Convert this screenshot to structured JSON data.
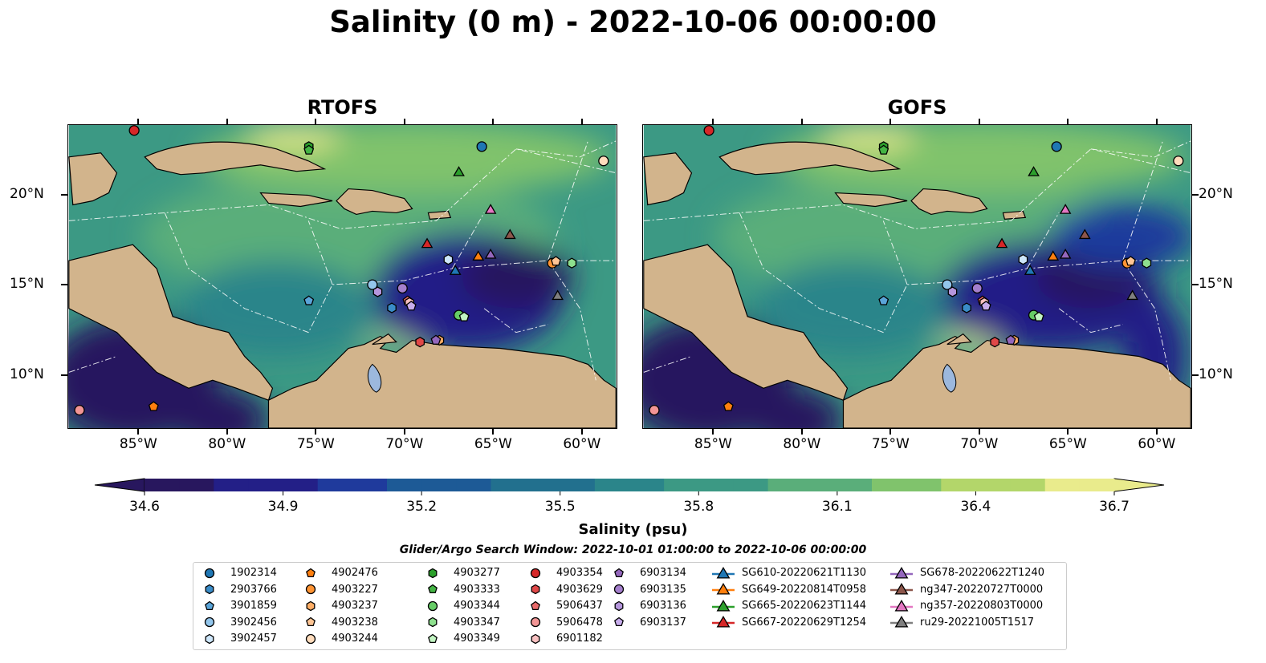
{
  "title": "Salinity (0 m) - 2022-10-06 00:00:00",
  "panels": [
    {
      "title": "RTOFS"
    },
    {
      "title": "GOFS"
    }
  ],
  "colors": {
    "land": "#d2b48c",
    "lake": "#9cb8dd",
    "cmap": [
      "#28175e",
      "#231f87",
      "#1f3a9c",
      "#1d5a96",
      "#22708e",
      "#2b858a",
      "#3c9984",
      "#5aae7a",
      "#80c36c",
      "#b3d66a",
      "#e9eb8c"
    ]
  },
  "chart_data": {
    "type": "heatmap",
    "title": "Salinity (0 m) - 2022-10-06 00:00:00",
    "xlim": [
      -89,
      -58
    ],
    "ylim": [
      7,
      23.9
    ],
    "xticks": [
      {
        "v": -85,
        "label": "85°W"
      },
      {
        "v": -80,
        "label": "80°W"
      },
      {
        "v": -75,
        "label": "75°W"
      },
      {
        "v": -70,
        "label": "70°W"
      },
      {
        "v": -65,
        "label": "65°W"
      },
      {
        "v": -60,
        "label": "60°W"
      }
    ],
    "yticks": [
      {
        "v": 20,
        "label": "20°N"
      },
      {
        "v": 15,
        "label": "15°N"
      },
      {
        "v": 10,
        "label": "10°N"
      }
    ],
    "colorbar": {
      "label": "Salinity (psu)",
      "range": [
        34.6,
        36.7
      ],
      "ticks": [
        "34.6",
        "34.9",
        "35.2",
        "35.5",
        "35.8",
        "36.1",
        "36.4",
        "36.7"
      ]
    },
    "window": "Glider/Argo Search Window: 2022-10-01 01:00:00 to 2022-10-06 00:00:00",
    "platforms": [
      {
        "id": "1902314",
        "shape": "circle",
        "color": "#1f77b4",
        "lon": -65.6,
        "lat": 22.7
      },
      {
        "id": "2903766",
        "shape": "hexagon",
        "color": "#3a8cc8",
        "lon": -70.7,
        "lat": 13.7
      },
      {
        "id": "3901859",
        "shape": "pentagon",
        "color": "#5aa4d8",
        "lon": -75.4,
        "lat": 14.1
      },
      {
        "id": "3902456",
        "shape": "circle",
        "color": "#93c6ec",
        "lon": -71.8,
        "lat": 15.0
      },
      {
        "id": "3902457",
        "shape": "hexagon",
        "color": "#cde6fa",
        "lon": -67.5,
        "lat": 16.4
      },
      {
        "id": "4902476",
        "shape": "pentagon",
        "color": "#ff7f0e",
        "lon": -84.2,
        "lat": 8.2
      },
      {
        "id": "4903227",
        "shape": "circle",
        "color": "#ff9433",
        "lon": -61.6,
        "lat": 16.2
      },
      {
        "id": "4903237",
        "shape": "hexagon",
        "color": "#ffae66",
        "lon": -68.0,
        "lat": 11.9
      },
      {
        "id": "4903238",
        "shape": "pentagon",
        "color": "#ffc594",
        "lon": -61.4,
        "lat": 16.3
      },
      {
        "id": "4903244",
        "shape": "circle",
        "color": "#ffdcbc",
        "lon": -58.7,
        "lat": 21.9
      },
      {
        "id": "4903277",
        "shape": "hexagon",
        "color": "#2ca02c",
        "lon": -75.4,
        "lat": 22.7
      },
      {
        "id": "4903333",
        "shape": "pentagon",
        "color": "#44b444",
        "lon": -75.4,
        "lat": 22.5
      },
      {
        "id": "4903344",
        "shape": "circle",
        "color": "#66cc66",
        "lon": -66.9,
        "lat": 13.3
      },
      {
        "id": "4903347",
        "shape": "hexagon",
        "color": "#8ee08e",
        "lon": -60.5,
        "lat": 16.2
      },
      {
        "id": "4903349",
        "shape": "pentagon",
        "color": "#c2f5c2",
        "lon": -66.6,
        "lat": 13.2
      },
      {
        "id": "4903354",
        "shape": "circle",
        "color": "#d62728",
        "lon": -85.3,
        "lat": 23.6
      },
      {
        "id": "4903629",
        "shape": "hexagon",
        "color": "#e04848",
        "lon": -69.1,
        "lat": 11.8
      },
      {
        "id": "5906437",
        "shape": "pentagon",
        "color": "#e86a6a",
        "lon": -69.8,
        "lat": 14.1
      },
      {
        "id": "5906478",
        "shape": "circle",
        "color": "#f29595",
        "lon": -88.4,
        "lat": 8.0
      },
      {
        "id": "6901182",
        "shape": "hexagon",
        "color": "#f8c0c0",
        "lon": -69.7,
        "lat": 14.0
      },
      {
        "id": "6903134",
        "shape": "pentagon",
        "color": "#9467bd",
        "lon": -68.2,
        "lat": 11.9
      },
      {
        "id": "6903135",
        "shape": "circle",
        "color": "#a47fcc",
        "lon": -70.1,
        "lat": 14.8
      },
      {
        "id": "6903136",
        "shape": "hexagon",
        "color": "#b596dc",
        "lon": -71.5,
        "lat": 14.6
      },
      {
        "id": "6903137",
        "shape": "pentagon",
        "color": "#c8adec",
        "lon": -69.6,
        "lat": 13.8
      },
      {
        "id": "SG610-20220621T1130",
        "shape": "triangle",
        "color": "#1f77b4",
        "lon": -67.1,
        "lat": 15.8
      },
      {
        "id": "SG649-20220814T0958",
        "shape": "triangle",
        "color": "#ff7f0e",
        "lon": -65.8,
        "lat": 16.6
      },
      {
        "id": "SG665-20220623T1144",
        "shape": "triangle",
        "color": "#2ca02c",
        "lon": -66.9,
        "lat": 21.3
      },
      {
        "id": "SG667-20220629T1254",
        "shape": "triangle",
        "color": "#d62728",
        "lon": -68.7,
        "lat": 17.3
      },
      {
        "id": "SG678-20220622T1240",
        "shape": "triangle",
        "color": "#9467bd",
        "lon": -65.1,
        "lat": 16.7
      },
      {
        "id": "ng347-20220727T0000",
        "shape": "triangle",
        "color": "#8c564b",
        "lon": -64.0,
        "lat": 17.8
      },
      {
        "id": "ng357-20220803T0000",
        "shape": "triangle",
        "color": "#e377c2",
        "lon": -65.1,
        "lat": 19.2
      },
      {
        "id": "ru29-20221005T1517",
        "shape": "triangle",
        "color": "#7f7f7f",
        "lon": -61.3,
        "lat": 14.4
      }
    ]
  }
}
